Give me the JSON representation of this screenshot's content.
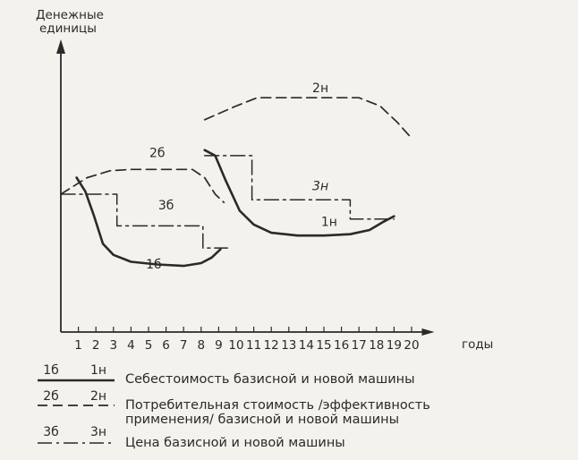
{
  "chart_data": {
    "type": "line",
    "ylabel_lines": [
      "Денежные",
      "единицы"
    ],
    "xlabel": "годы",
    "x_ticks": [
      1,
      2,
      3,
      4,
      5,
      6,
      7,
      8,
      9,
      10,
      11,
      12,
      13,
      14,
      15,
      16,
      17,
      18,
      19,
      20
    ],
    "xlim": [
      0,
      21.3
    ],
    "ylim": [
      0,
      10
    ],
    "series": [
      {
        "name": "1б",
        "style": "solid",
        "label_at": [
          5.3,
          2.3
        ],
        "points": [
          [
            0.9,
            5.6
          ],
          [
            1.4,
            5.1
          ],
          [
            1.9,
            4.2
          ],
          [
            2.4,
            3.2
          ],
          [
            3.0,
            2.8
          ],
          [
            4.0,
            2.55
          ],
          [
            5.5,
            2.45
          ],
          [
            7.0,
            2.4
          ],
          [
            8.0,
            2.5
          ],
          [
            8.6,
            2.7
          ],
          [
            9.1,
            3.0
          ]
        ]
      },
      {
        "name": "1н",
        "style": "solid",
        "label_at": [
          15.3,
          3.85
        ],
        "points": [
          [
            8.2,
            6.6
          ],
          [
            8.8,
            6.4
          ],
          [
            9.4,
            5.5
          ],
          [
            10.2,
            4.4
          ],
          [
            11.0,
            3.9
          ],
          [
            12.0,
            3.6
          ],
          [
            13.5,
            3.5
          ],
          [
            15.0,
            3.5
          ],
          [
            16.5,
            3.55
          ],
          [
            17.6,
            3.7
          ],
          [
            18.4,
            4.0
          ],
          [
            19.0,
            4.2
          ]
        ]
      },
      {
        "name": "2б",
        "style": "dashed",
        "label_at": [
          5.5,
          6.35
        ],
        "points": [
          [
            0,
            5.0
          ],
          [
            1.5,
            5.6
          ],
          [
            2.8,
            5.85
          ],
          [
            4,
            5.9
          ],
          [
            6,
            5.9
          ],
          [
            7.5,
            5.9
          ],
          [
            8.2,
            5.6
          ],
          [
            8.8,
            5.0
          ],
          [
            9.3,
            4.7
          ]
        ]
      },
      {
        "name": "2н",
        "style": "dashed",
        "label_at": [
          14.8,
          8.7
        ],
        "points": [
          [
            8.2,
            7.7
          ],
          [
            10,
            8.2
          ],
          [
            11.2,
            8.5
          ],
          [
            13,
            8.5
          ],
          [
            15,
            8.5
          ],
          [
            17,
            8.5
          ],
          [
            18.2,
            8.2
          ],
          [
            19.2,
            7.6
          ],
          [
            19.9,
            7.1
          ]
        ]
      },
      {
        "name": "3б",
        "style": "dashdot",
        "label_at": [
          6.0,
          4.45
        ],
        "points": [
          [
            0,
            5.0
          ],
          [
            3.2,
            5.0
          ],
          [
            3.2,
            3.85
          ],
          [
            8.1,
            3.85
          ],
          [
            8.1,
            3.05
          ],
          [
            9.5,
            3.05
          ]
        ]
      },
      {
        "name": "3н",
        "style": "dashdot",
        "label_at": [
          14.8,
          5.15
        ],
        "points": [
          [
            8.2,
            6.4
          ],
          [
            10.9,
            6.4
          ],
          [
            10.9,
            4.8
          ],
          [
            16.5,
            4.8
          ],
          [
            16.5,
            4.1
          ],
          [
            19.0,
            4.1
          ]
        ]
      }
    ],
    "legend": [
      {
        "codes": [
          "1б",
          "1н"
        ],
        "style": "solid",
        "text_lines": [
          "Себестоимость базисной и новой машины"
        ]
      },
      {
        "codes": [
          "2б",
          "2н"
        ],
        "style": "dashed",
        "text_lines": [
          "Потребительная стоимость /эффективность",
          "применения/ базисной и новой машины"
        ]
      },
      {
        "codes": [
          "3б",
          "3н"
        ],
        "style": "dashdot",
        "text_lines": [
          "Цена базисной и новой машины"
        ]
      }
    ],
    "legend_placement": "bottom",
    "grid": false
  }
}
